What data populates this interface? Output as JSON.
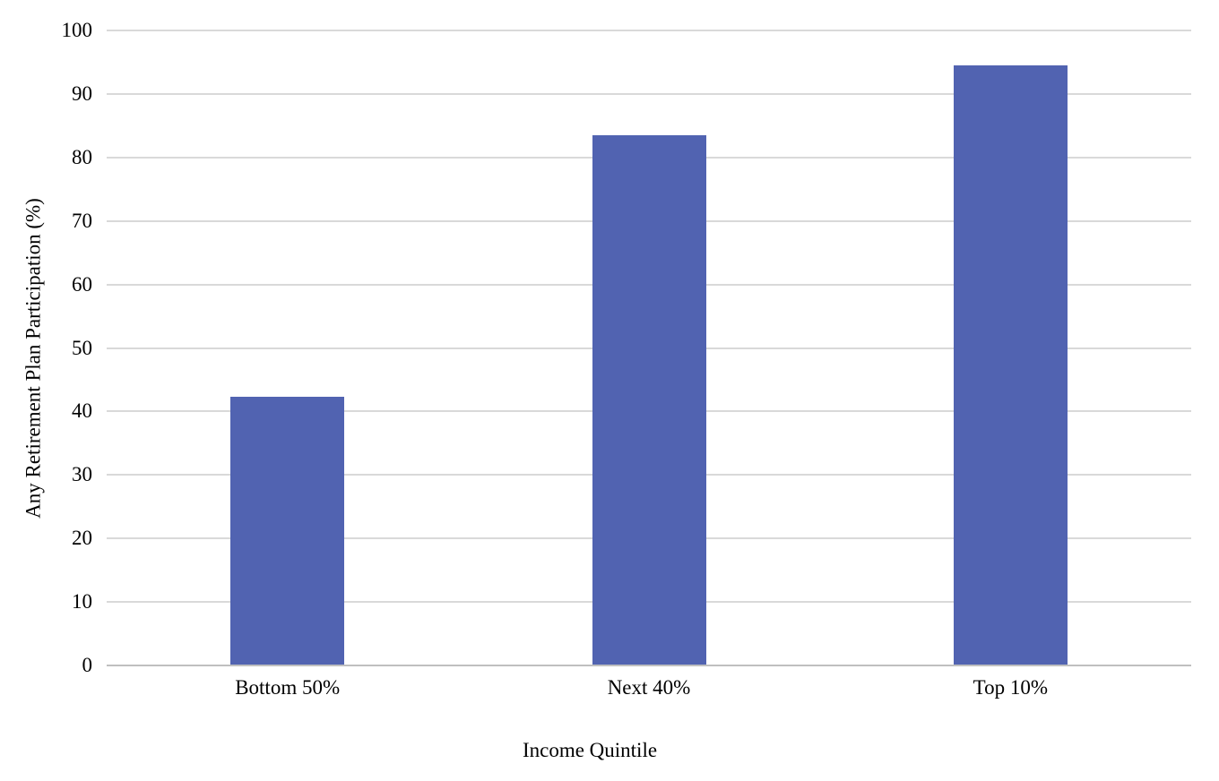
{
  "chart_data": {
    "type": "bar",
    "categories": [
      "Bottom 50%",
      "Next 40%",
      "Top 10%"
    ],
    "values": [
      42.3,
      83.5,
      94.5
    ],
    "title": "",
    "xlabel": "Income Quintile",
    "ylabel": "Any Retirement Plan Participation (%)",
    "ylim": [
      0,
      100
    ],
    "yticks": [
      0,
      10,
      20,
      30,
      40,
      50,
      60,
      70,
      80,
      90,
      100
    ],
    "legend": "none",
    "grid": "horizontal",
    "colors": {
      "bar_fill": "#5163B1",
      "gridline": "#D9D9D9",
      "axis_line": "#BFBFBF",
      "text": "#000000",
      "background": "#FFFFFF"
    }
  }
}
